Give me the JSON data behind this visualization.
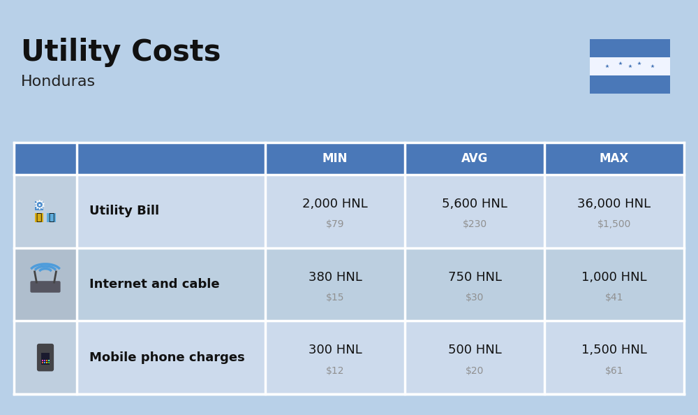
{
  "title": "Utility Costs",
  "subtitle": "Honduras",
  "background_color": "#b8d0e8",
  "header_bg_color": "#4a78b8",
  "header_text_color": "#ffffff",
  "row_bg_even": "#ccdaec",
  "row_bg_odd": "#bccfe0",
  "icon_col_bg_even": "#bfcfdf",
  "icon_col_bg_odd": "#afbecd",
  "divider_color": "#ffffff",
  "rows": [
    {
      "label": "Utility Bill",
      "min_hnl": "2,000 HNL",
      "min_usd": "$79",
      "avg_hnl": "5,600 HNL",
      "avg_usd": "$230",
      "max_hnl": "36,000 HNL",
      "max_usd": "$1,500"
    },
    {
      "label": "Internet and cable",
      "min_hnl": "380 HNL",
      "min_usd": "$15",
      "avg_hnl": "750 HNL",
      "avg_usd": "$30",
      "max_hnl": "1,000 HNL",
      "max_usd": "$41"
    },
    {
      "label": "Mobile phone charges",
      "min_hnl": "300 HNL",
      "min_usd": "$12",
      "avg_hnl": "500 HNL",
      "avg_usd": "$20",
      "max_hnl": "1,500 HNL",
      "max_usd": "$61"
    }
  ],
  "col_headers": [
    "MIN",
    "AVG",
    "MAX"
  ],
  "hnl_fontsize": 13,
  "usd_fontsize": 10,
  "label_fontsize": 13,
  "header_fontsize": 12,
  "title_fontsize": 30,
  "subtitle_fontsize": 16,
  "usd_color": "#909090",
  "flag_blue": "#4a78b8",
  "flag_white": "#f0f4ff"
}
